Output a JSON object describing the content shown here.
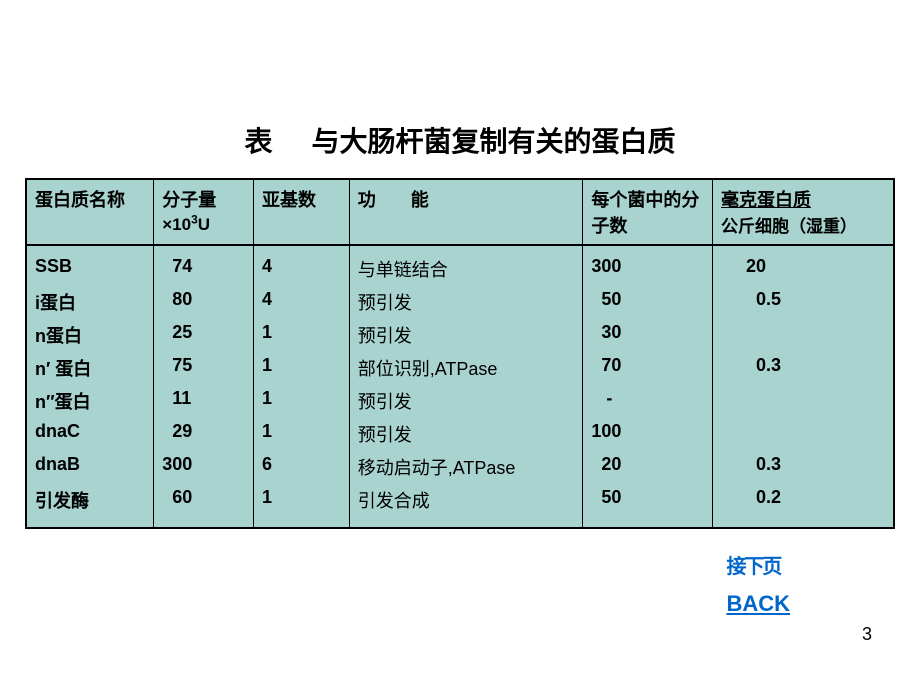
{
  "title": "表     与大肠杆菌复制有关的蛋白质",
  "table": {
    "background_color": "#a8d3cf",
    "border_color": "#000000",
    "headers": {
      "name": "蛋白质名称",
      "mw_line1": "分子量",
      "mw_line2_prefix": "×10",
      "mw_line2_sup": "3",
      "mw_line2_suffix": "U",
      "subunits": "亚基数",
      "function": "功       能",
      "molecules": "每个菌中的分子数",
      "mg_line1": "毫克蛋白质",
      "mg_line2": "公斤细胞（湿重）"
    },
    "rows": [
      {
        "name": "SSB",
        "mw": "  74",
        "sub": "4",
        "func": "与单链结合",
        "mol": "300",
        "mg": "     20"
      },
      {
        "name": "i蛋白",
        "mw": "  80",
        "sub": "4",
        "func": "预引发",
        "mol": "  50",
        "mg": "       0.5"
      },
      {
        "name": "n蛋白",
        "mw": "  25",
        "sub": "1",
        "func": "预引发",
        "mol": "  30",
        "mg": ""
      },
      {
        "name": "n′ 蛋白",
        "mw": "  75",
        "sub": "1",
        "func": "部位识别,ATPase",
        "mol": "  70",
        "mg": "       0.3"
      },
      {
        "name": "n″蛋白",
        "mw": "  11",
        "sub": "1",
        "func": "预引发",
        "mol": "   -",
        "mg": ""
      },
      {
        "name": "dnaC",
        "mw": "  29",
        "sub": "1",
        "func": "预引发",
        "mol": "100",
        "mg": ""
      },
      {
        "name": "dnaB",
        "mw": "300",
        "sub": "6",
        "func": "移动启动子,ATPase",
        "mol": "  20",
        "mg": "       0.3"
      },
      {
        "name": "引发酶",
        "mw": "  60",
        "sub": "1",
        "func": "引发合成",
        "mol": "  50",
        "mg": "       0.2"
      }
    ]
  },
  "links": {
    "next": "接下页",
    "back": "BACK"
  },
  "page_number": "3"
}
